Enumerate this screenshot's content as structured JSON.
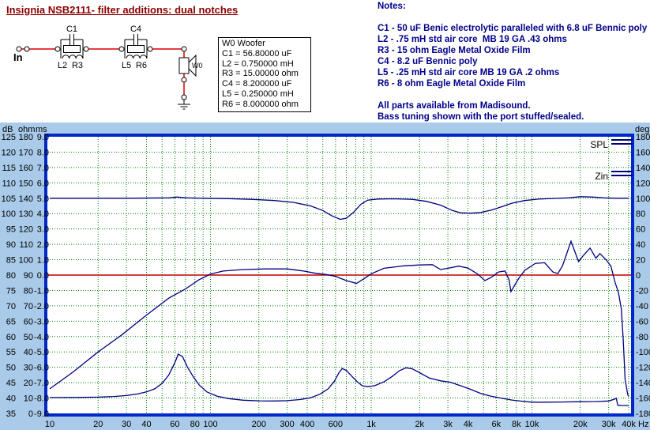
{
  "title": "Insignia NSB2111- filter additions: dual notches",
  "schematic": {
    "input_label": "In",
    "labels": {
      "c1": "C1",
      "l2": "L2",
      "r3": "R3",
      "c4": "C4",
      "l5": "L5",
      "r6": "R6",
      "w0": "W0"
    }
  },
  "component_box": {
    "lines": [
      "W0 Woofer",
      "C1 = 56.80000 uF",
      "L2 = 0.750000 mH",
      "R3 = 15.00000 ohm",
      "C4 = 8.200000 uF",
      "L5 = 0.250000 mH",
      "R6 = 8.000000 ohm"
    ]
  },
  "notes": {
    "lines": [
      "Notes:",
      "",
      "C1 - 50 uF Benic electrolytic paralleled with 6.8 uF Bennic poly",
      "L2 - .75 mH std air core  MB 19 GA .43 ohms",
      "R3 - 15 ohm Eagle Metal Oxide Film",
      "C4 - 8.2 uF Bennic poly",
      "L5 - .25 mH std air core MB 19 GA .2 ohms",
      "R6 - 8 ohm Eagle Metal Oxide Film",
      "",
      "All parts available from Madisound.",
      "Bass tuning shown with the port stuffed/sealed."
    ]
  },
  "colors": {
    "title": "#8B0000",
    "notes": "#00008B",
    "chart_background": "#A9CAE8",
    "plot_background": "#FFFFFF",
    "plot_border": "#0028C8",
    "grid": "#008000",
    "zero_line": "#C00000",
    "curve": "#000080",
    "wire": "#D40000",
    "axis_text": "#000000"
  },
  "chart_data": {
    "type": "line",
    "title": "",
    "x_axis": {
      "scale": "log",
      "unit_label": "Hz",
      "min": 10,
      "max": 40000,
      "tick_values": [
        10,
        20,
        30,
        40,
        60,
        80,
        100,
        200,
        300,
        400,
        600,
        1000,
        2000,
        3000,
        4000,
        6000,
        8000,
        10000,
        20000,
        30000,
        40000
      ],
      "tick_labels": [
        "10",
        "20",
        "30",
        "40",
        "60",
        "80",
        "100",
        "200",
        "300",
        "400",
        "600",
        "1k",
        "2k",
        "3k",
        "4k",
        "6k",
        "8k",
        "10k",
        "20k",
        "30k",
        "40k"
      ]
    },
    "y_axes": [
      {
        "name": "dB",
        "side": "left",
        "min": 35,
        "max": 125,
        "step": 5,
        "decimals": 0
      },
      {
        "name": "ohm",
        "side": "left",
        "min": 0,
        "max": 180,
        "step": 10,
        "decimals": 0
      },
      {
        "name": "ms",
        "side": "left",
        "min": -9,
        "max": 9,
        "step": 1,
        "decimals": 1
      },
      {
        "name": "deg",
        "side": "right",
        "min": -180,
        "max": 180,
        "step": 20,
        "decimals": 0
      }
    ],
    "zero_line": {
      "dB": 80,
      "ohm": 90,
      "ms": 0.0,
      "deg": 0
    },
    "grid": "dotted-green",
    "legend": [
      {
        "label": "SPL",
        "marker": "double-line"
      },
      {
        "label": "Zin",
        "marker": "double-line"
      }
    ],
    "series": [
      {
        "name": "SPL",
        "unit": "dB",
        "points": [
          [
            10,
            43
          ],
          [
            14,
            48.5
          ],
          [
            20,
            55
          ],
          [
            28,
            60.5
          ],
          [
            40,
            67
          ],
          [
            55,
            72.5
          ],
          [
            70,
            75.5
          ],
          [
            85,
            78.5
          ],
          [
            100,
            80.3
          ],
          [
            120,
            81.3
          ],
          [
            160,
            81.8
          ],
          [
            220,
            82
          ],
          [
            300,
            82
          ],
          [
            380,
            81.3
          ],
          [
            450,
            80.6
          ],
          [
            520,
            80.2
          ],
          [
            600,
            79.6
          ],
          [
            700,
            78.2
          ],
          [
            810,
            77.3
          ],
          [
            900,
            78.8
          ],
          [
            1000,
            80.4
          ],
          [
            1200,
            82.2
          ],
          [
            1600,
            83
          ],
          [
            2000,
            83.3
          ],
          [
            2400,
            83.4
          ],
          [
            2700,
            81.8
          ],
          [
            3000,
            82.2
          ],
          [
            3500,
            82.9
          ],
          [
            4000,
            82.3
          ],
          [
            4600,
            80.3
          ],
          [
            5100,
            78.2
          ],
          [
            5600,
            79.3
          ],
          [
            6200,
            81
          ],
          [
            6800,
            81.3
          ],
          [
            7200,
            78.5
          ],
          [
            7400,
            74.6
          ],
          [
            8300,
            79
          ],
          [
            9000,
            81.5
          ],
          [
            10500,
            83.8
          ],
          [
            12000,
            84
          ],
          [
            13500,
            81
          ],
          [
            14500,
            80.5
          ],
          [
            15500,
            83
          ],
          [
            17500,
            91
          ],
          [
            19500,
            84.4
          ],
          [
            21000,
            86.5
          ],
          [
            23000,
            88.8
          ],
          [
            25000,
            85.5
          ],
          [
            26500,
            87
          ],
          [
            29000,
            84.9
          ],
          [
            31000,
            82.9
          ],
          [
            33000,
            77.4
          ],
          [
            34500,
            74.5
          ],
          [
            36000,
            69
          ],
          [
            37000,
            59
          ],
          [
            38000,
            46
          ],
          [
            39500,
            41
          ],
          [
            40000,
            40.5
          ]
        ]
      },
      {
        "name": "SPL phase",
        "unit": "deg",
        "points": [
          [
            10,
            100
          ],
          [
            30,
            100
          ],
          [
            55,
            100.5
          ],
          [
            62,
            101.5
          ],
          [
            70,
            100.5
          ],
          [
            90,
            100
          ],
          [
            130,
            99.5
          ],
          [
            180,
            98.5
          ],
          [
            250,
            97
          ],
          [
            330,
            94.5
          ],
          [
            420,
            90
          ],
          [
            500,
            84
          ],
          [
            570,
            77
          ],
          [
            640,
            72.5
          ],
          [
            700,
            74
          ],
          [
            780,
            82
          ],
          [
            860,
            92
          ],
          [
            950,
            97.5
          ],
          [
            1100,
            99
          ],
          [
            1400,
            99.3
          ],
          [
            1800,
            98.5
          ],
          [
            2200,
            96
          ],
          [
            2700,
            91
          ],
          [
            3200,
            84
          ],
          [
            3600,
            81
          ],
          [
            4200,
            80.5
          ],
          [
            4800,
            81.5
          ],
          [
            5600,
            84.5
          ],
          [
            6500,
            89
          ],
          [
            7500,
            93.5
          ],
          [
            9000,
            97
          ],
          [
            11000,
            98.8
          ],
          [
            14000,
            99.8
          ],
          [
            17000,
            100.5
          ],
          [
            20000,
            102
          ],
          [
            24000,
            101.5
          ],
          [
            28000,
            100.5
          ],
          [
            33000,
            100
          ],
          [
            40000,
            100
          ]
        ]
      },
      {
        "name": "Zin",
        "unit": "ohm",
        "points": [
          [
            10,
            10.3
          ],
          [
            15,
            10.4
          ],
          [
            20,
            10.6
          ],
          [
            25,
            11
          ],
          [
            30,
            11.6
          ],
          [
            35,
            12.6
          ],
          [
            40,
            14
          ],
          [
            45,
            16
          ],
          [
            50,
            19.5
          ],
          [
            55,
            25
          ],
          [
            60,
            33
          ],
          [
            63,
            38.5
          ],
          [
            67,
            37
          ],
          [
            72,
            30
          ],
          [
            78,
            24
          ],
          [
            85,
            18.5
          ],
          [
            95,
            14
          ],
          [
            110,
            11.2
          ],
          [
            130,
            9.6
          ],
          [
            160,
            8.6
          ],
          [
            200,
            8.2
          ],
          [
            250,
            8.1
          ],
          [
            300,
            8.3
          ],
          [
            360,
            9
          ],
          [
            420,
            10.2
          ],
          [
            480,
            12.5
          ],
          [
            540,
            16
          ],
          [
            590,
            21
          ],
          [
            630,
            26.5
          ],
          [
            660,
            29.2
          ],
          [
            700,
            28
          ],
          [
            760,
            24
          ],
          [
            820,
            20.5
          ],
          [
            880,
            18
          ],
          [
            950,
            17.4
          ],
          [
            1050,
            18
          ],
          [
            1200,
            20.5
          ],
          [
            1350,
            24
          ],
          [
            1500,
            27.8
          ],
          [
            1650,
            29.7
          ],
          [
            1800,
            29
          ],
          [
            2000,
            26.5
          ],
          [
            2300,
            23
          ],
          [
            2700,
            21.2
          ],
          [
            3100,
            20.3
          ],
          [
            3600,
            18
          ],
          [
            4200,
            15.5
          ],
          [
            4800,
            13
          ],
          [
            5500,
            11.3
          ],
          [
            6500,
            9.8
          ],
          [
            7500,
            8.7
          ],
          [
            8500,
            8
          ],
          [
            10000,
            7.3
          ],
          [
            12000,
            7.3
          ],
          [
            15000,
            7.4
          ],
          [
            20000,
            7.6
          ],
          [
            25000,
            7.7
          ],
          [
            30000,
            8.1
          ],
          [
            32500,
            9.2
          ],
          [
            33500,
            9.8
          ],
          [
            34200,
            5.3
          ],
          [
            36000,
            5.2
          ],
          [
            40000,
            5.1
          ]
        ]
      }
    ]
  }
}
